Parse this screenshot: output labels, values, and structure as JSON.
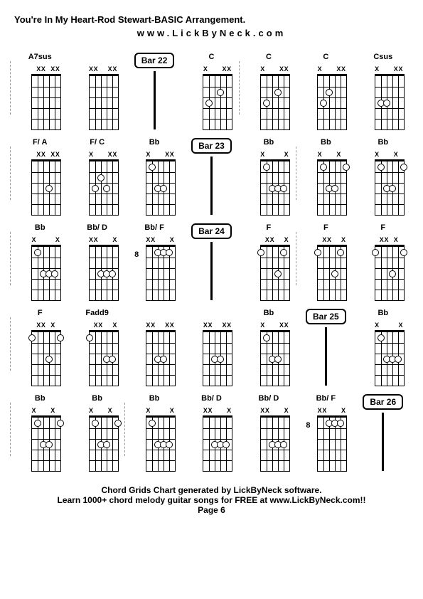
{
  "title": "You're In My Heart-Rod Stewart-BASIC Arrangement.",
  "url": "www.LickByNeck.com",
  "footer_line1": "Chord Grids Chart generated by LickByNeck software.",
  "footer_line2": "Learn 1000+ chord melody guitar songs for FREE at www.LickByNeck.com!!",
  "footer_page": "Page 6",
  "chord_style": {
    "diagram_width": 56,
    "diagram_height": 90,
    "fretboard_width": 40,
    "fretboard_height": 75,
    "num_frets": 5,
    "num_strings": 6,
    "dot_size": 8,
    "label_fontsize": 11,
    "mark_fontsize": 9
  },
  "bar_marker_style": {
    "border_color": "#000000",
    "border_width": 2,
    "border_radius": 6,
    "fontsize": 12
  },
  "rows": [
    [
      {
        "type": "chord",
        "label": "A7sus",
        "marks": [
          "",
          "X",
          "X",
          "",
          "X",
          "X"
        ],
        "dots": [],
        "fret_pos": "",
        "divider_before": true
      },
      {
        "type": "chord",
        "label": "",
        "marks": [
          "X",
          "X",
          "",
          "",
          "X",
          "X"
        ],
        "dots": [],
        "fret_pos": ""
      },
      {
        "type": "bar",
        "label": "Bar 22"
      },
      {
        "type": "chord",
        "label": "C",
        "marks": [
          "X",
          "",
          "",
          "",
          "X",
          "X"
        ],
        "dots": [
          {
            "s": 2,
            "f": 3
          },
          {
            "s": 4,
            "f": 2
          }
        ],
        "fret_pos": ""
      },
      {
        "type": "chord",
        "label": "C",
        "marks": [
          "X",
          "",
          "",
          "",
          "X",
          "X"
        ],
        "dots": [
          {
            "s": 2,
            "f": 3
          },
          {
            "s": 4,
            "f": 2
          }
        ],
        "fret_pos": "",
        "divider_before": true
      },
      {
        "type": "chord",
        "label": "C",
        "marks": [
          "X",
          "",
          "",
          "",
          "X",
          "X"
        ],
        "dots": [
          {
            "s": 2,
            "f": 3
          },
          {
            "s": 3,
            "f": 2
          }
        ],
        "fret_pos": ""
      },
      {
        "type": "chord",
        "label": "Csus",
        "marks": [
          "X",
          "",
          "",
          "",
          "X",
          "X"
        ],
        "dots": [
          {
            "s": 2,
            "f": 3
          },
          {
            "s": 3,
            "f": 3
          }
        ],
        "fret_pos": ""
      }
    ],
    [
      {
        "type": "chord",
        "label": "F/ A",
        "marks": [
          "",
          "X",
          "X",
          "",
          "X",
          "X"
        ],
        "dots": [
          {
            "s": 4,
            "f": 3
          }
        ],
        "fret_pos": "",
        "divider_before": true
      },
      {
        "type": "chord",
        "label": "F/ C",
        "marks": [
          "X",
          "",
          "",
          "",
          "X",
          "X"
        ],
        "dots": [
          {
            "s": 2,
            "f": 3
          },
          {
            "s": 3,
            "f": 2
          },
          {
            "s": 4,
            "f": 3
          }
        ],
        "fret_pos": ""
      },
      {
        "type": "chord",
        "label": "Bb",
        "marks": [
          "X",
          "",
          "",
          "",
          "X",
          "X"
        ],
        "dots": [
          {
            "s": 2,
            "f": 1
          },
          {
            "s": 3,
            "f": 3
          },
          {
            "s": 4,
            "f": 3
          }
        ],
        "fret_pos": ""
      },
      {
        "type": "bar",
        "label": "Bar 23"
      },
      {
        "type": "chord",
        "label": "Bb",
        "marks": [
          "X",
          "",
          "",
          "",
          "",
          "X"
        ],
        "dots": [
          {
            "s": 2,
            "f": 1
          },
          {
            "s": 3,
            "f": 3
          },
          {
            "s": 4,
            "f": 3
          },
          {
            "s": 5,
            "f": 3
          }
        ],
        "fret_pos": ""
      },
      {
        "type": "chord",
        "label": "Bb",
        "marks": [
          "X",
          "",
          "",
          "",
          "X",
          ""
        ],
        "dots": [
          {
            "s": 2,
            "f": 1
          },
          {
            "s": 3,
            "f": 3
          },
          {
            "s": 4,
            "f": 3
          },
          {
            "s": 6,
            "f": 1
          }
        ],
        "fret_pos": "",
        "divider_before": true
      },
      {
        "type": "chord",
        "label": "Bb",
        "marks": [
          "X",
          "",
          "",
          "",
          "X",
          ""
        ],
        "dots": [
          {
            "s": 2,
            "f": 1
          },
          {
            "s": 3,
            "f": 3
          },
          {
            "s": 4,
            "f": 3
          },
          {
            "s": 6,
            "f": 1
          }
        ],
        "fret_pos": ""
      }
    ],
    [
      {
        "type": "chord",
        "label": "Bb",
        "marks": [
          "X",
          "",
          "",
          "",
          "",
          "X"
        ],
        "dots": [
          {
            "s": 2,
            "f": 1
          },
          {
            "s": 3,
            "f": 3
          },
          {
            "s": 4,
            "f": 3
          },
          {
            "s": 5,
            "f": 3
          }
        ],
        "fret_pos": "",
        "divider_before": true
      },
      {
        "type": "chord",
        "label": "Bb/ D",
        "marks": [
          "X",
          "X",
          "",
          "",
          "",
          "X"
        ],
        "dots": [
          {
            "s": 3,
            "f": 3
          },
          {
            "s": 4,
            "f": 3
          },
          {
            "s": 5,
            "f": 3
          }
        ],
        "fret_pos": ""
      },
      {
        "type": "chord",
        "label": "Bb/ F",
        "marks": [
          "X",
          "X",
          "",
          "",
          "",
          "X"
        ],
        "dots": [
          {
            "s": 3,
            "f": 1
          },
          {
            "s": 4,
            "f": 1
          },
          {
            "s": 5,
            "f": 1
          }
        ],
        "fret_pos": "8"
      },
      {
        "type": "bar",
        "label": "Bar 24"
      },
      {
        "type": "chord",
        "label": "F",
        "marks": [
          "",
          "X",
          "X",
          "",
          "",
          "X"
        ],
        "dots": [
          {
            "s": 1,
            "f": 1
          },
          {
            "s": 4,
            "f": 3
          },
          {
            "s": 5,
            "f": 1
          }
        ],
        "fret_pos": ""
      },
      {
        "type": "chord",
        "label": "F",
        "marks": [
          "",
          "X",
          "X",
          "",
          "",
          "X"
        ],
        "dots": [
          {
            "s": 1,
            "f": 1
          },
          {
            "s": 4,
            "f": 3
          },
          {
            "s": 5,
            "f": 1
          }
        ],
        "fret_pos": "",
        "divider_before": true
      },
      {
        "type": "chord",
        "label": "F",
        "marks": [
          "",
          "X",
          "X",
          "",
          "X",
          ""
        ],
        "dots": [
          {
            "s": 1,
            "f": 1
          },
          {
            "s": 4,
            "f": 3
          },
          {
            "s": 6,
            "f": 1
          }
        ],
        "fret_pos": ""
      }
    ],
    [
      {
        "type": "chord",
        "label": "F",
        "marks": [
          "",
          "X",
          "X",
          "",
          "X",
          ""
        ],
        "dots": [
          {
            "s": 1,
            "f": 1
          },
          {
            "s": 4,
            "f": 3
          },
          {
            "s": 6,
            "f": 1
          }
        ],
        "fret_pos": "",
        "divider_before": true
      },
      {
        "type": "chord",
        "label": "Fadd9",
        "marks": [
          "",
          "X",
          "X",
          "",
          "",
          "X"
        ],
        "dots": [
          {
            "s": 1,
            "f": 1
          },
          {
            "s": 4,
            "f": 3
          },
          {
            "s": 5,
            "f": 3
          }
        ],
        "fret_pos": ""
      },
      {
        "type": "chord",
        "label": "",
        "marks": [
          "X",
          "X",
          "",
          "",
          "X",
          "X"
        ],
        "dots": [
          {
            "s": 3,
            "f": 3
          },
          {
            "s": 4,
            "f": 3
          }
        ],
        "fret_pos": ""
      },
      {
        "type": "chord",
        "label": "",
        "marks": [
          "X",
          "X",
          "",
          "",
          "X",
          "X"
        ],
        "dots": [
          {
            "s": 3,
            "f": 3
          },
          {
            "s": 4,
            "f": 3
          }
        ],
        "fret_pos": ""
      },
      {
        "type": "chord",
        "label": "Bb",
        "marks": [
          "X",
          "",
          "",
          "",
          "X",
          "X"
        ],
        "dots": [
          {
            "s": 2,
            "f": 1
          },
          {
            "s": 3,
            "f": 3
          },
          {
            "s": 4,
            "f": 3
          }
        ],
        "fret_pos": ""
      },
      {
        "type": "bar",
        "label": "Bar 25"
      },
      {
        "type": "chord",
        "label": "Bb",
        "marks": [
          "X",
          "",
          "",
          "",
          "",
          "X"
        ],
        "dots": [
          {
            "s": 2,
            "f": 1
          },
          {
            "s": 3,
            "f": 3
          },
          {
            "s": 4,
            "f": 3
          },
          {
            "s": 5,
            "f": 3
          }
        ],
        "fret_pos": ""
      }
    ],
    [
      {
        "type": "chord",
        "label": "Bb",
        "marks": [
          "X",
          "",
          "",
          "",
          "X",
          ""
        ],
        "dots": [
          {
            "s": 2,
            "f": 1
          },
          {
            "s": 3,
            "f": 3
          },
          {
            "s": 4,
            "f": 3
          },
          {
            "s": 6,
            "f": 1
          }
        ],
        "fret_pos": "",
        "divider_before": true
      },
      {
        "type": "chord",
        "label": "Bb",
        "marks": [
          "X",
          "",
          "",
          "",
          "X",
          ""
        ],
        "dots": [
          {
            "s": 2,
            "f": 1
          },
          {
            "s": 3,
            "f": 3
          },
          {
            "s": 4,
            "f": 3
          },
          {
            "s": 6,
            "f": 1
          }
        ],
        "fret_pos": ""
      },
      {
        "type": "chord",
        "label": "Bb",
        "marks": [
          "X",
          "",
          "",
          "",
          "",
          "X"
        ],
        "dots": [
          {
            "s": 2,
            "f": 1
          },
          {
            "s": 3,
            "f": 3
          },
          {
            "s": 4,
            "f": 3
          },
          {
            "s": 5,
            "f": 3
          }
        ],
        "fret_pos": "",
        "divider_before": true
      },
      {
        "type": "chord",
        "label": "Bb/ D",
        "marks": [
          "X",
          "X",
          "",
          "",
          "",
          "X"
        ],
        "dots": [
          {
            "s": 3,
            "f": 3
          },
          {
            "s": 4,
            "f": 3
          },
          {
            "s": 5,
            "f": 3
          }
        ],
        "fret_pos": ""
      },
      {
        "type": "chord",
        "label": "Bb/ D",
        "marks": [
          "X",
          "X",
          "",
          "",
          "",
          "X"
        ],
        "dots": [
          {
            "s": 3,
            "f": 3
          },
          {
            "s": 4,
            "f": 3
          },
          {
            "s": 5,
            "f": 3
          }
        ],
        "fret_pos": ""
      },
      {
        "type": "chord",
        "label": "Bb/ F",
        "marks": [
          "X",
          "X",
          "",
          "",
          "",
          "X"
        ],
        "dots": [
          {
            "s": 3,
            "f": 1
          },
          {
            "s": 4,
            "f": 1
          },
          {
            "s": 5,
            "f": 1
          }
        ],
        "fret_pos": "8"
      },
      {
        "type": "bar",
        "label": "Bar 26"
      }
    ]
  ]
}
